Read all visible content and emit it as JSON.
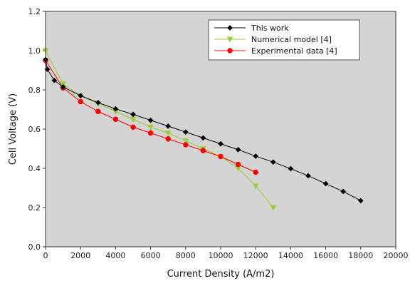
{
  "chart_data": {
    "type": "line",
    "xlabel": "Current Density (A/m2)",
    "ylabel": "Cell Voltage (V)",
    "xlim": [
      0,
      20000
    ],
    "ylim": [
      0.0,
      1.2
    ],
    "x_ticks": [
      0,
      2000,
      4000,
      6000,
      8000,
      10000,
      12000,
      14000,
      16000,
      18000,
      20000
    ],
    "y_ticks": [
      0.0,
      0.2,
      0.4,
      0.6,
      0.8,
      1.0,
      1.2
    ],
    "x_tick_labels": [
      "0",
      "2000",
      "4000",
      "6000",
      "8000",
      "10000",
      "12000",
      "14000",
      "16000",
      "18000",
      "20000"
    ],
    "y_tick_labels": [
      "0.0",
      "0.2",
      "0.4",
      "0.6",
      "0.8",
      "1.0",
      "1.2"
    ],
    "grid": false,
    "plot_background": "#d4d4d4",
    "legend_position": "top-right",
    "series": [
      {
        "name": "This work",
        "color": "#000000",
        "marker": "diamond",
        "x": [
          0,
          100,
          500,
          1000,
          2000,
          3000,
          4000,
          5000,
          6000,
          7000,
          8000,
          9000,
          10000,
          11000,
          12000,
          13000,
          14000,
          15000,
          16000,
          17000,
          18000
        ],
        "y": [
          0.955,
          0.905,
          0.848,
          0.815,
          0.77,
          0.735,
          0.703,
          0.675,
          0.645,
          0.615,
          0.585,
          0.555,
          0.525,
          0.495,
          0.462,
          0.432,
          0.398,
          0.362,
          0.322,
          0.282,
          0.235
        ]
      },
      {
        "name": "Numerical model [4]",
        "color": "#9acd32",
        "marker": "triangle-down",
        "x": [
          0,
          1000,
          2000,
          3000,
          4000,
          5000,
          6000,
          7000,
          8000,
          9000,
          10000,
          11000,
          12000,
          13000
        ],
        "y": [
          1.0,
          0.83,
          0.77,
          0.73,
          0.69,
          0.65,
          0.61,
          0.58,
          0.54,
          0.5,
          0.46,
          0.4,
          0.31,
          0.2
        ]
      },
      {
        "name": "Experimental data [4]",
        "color": "#ff0000",
        "marker": "circle",
        "x": [
          0,
          1000,
          2000,
          3000,
          4000,
          5000,
          6000,
          7000,
          8000,
          9000,
          10000,
          11000,
          12000
        ],
        "y": [
          0.95,
          0.81,
          0.74,
          0.69,
          0.65,
          0.61,
          0.58,
          0.55,
          0.52,
          0.49,
          0.46,
          0.42,
          0.38
        ]
      }
    ]
  }
}
